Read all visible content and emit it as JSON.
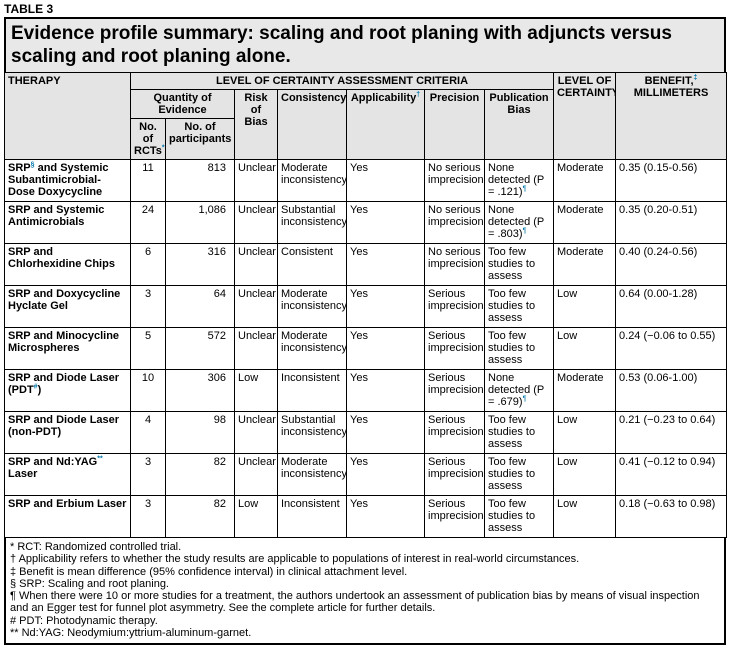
{
  "header": {
    "label": "TABLE 3",
    "title": "Evidence profile summary: scaling and root planing with adjuncts versus scaling and root planing alone."
  },
  "table": {
    "headers": {
      "therapy": "THERAPY",
      "criteria": "LEVEL OF CERTAINTY ASSESSMENT CRITERIA",
      "certainty": "LEVEL OF CERTAINTY",
      "benefit": [
        {
          "t": "BENEFIT,"
        },
        {
          "sup": "‡"
        },
        {
          "t": " MILLIMETERS"
        }
      ],
      "quantity": "Quantity of Evidence",
      "risk": "Risk of Bias",
      "consistency": "Consistency",
      "applicability": [
        {
          "t": "Applicability"
        },
        {
          "sup": "†"
        }
      ],
      "precision": "Precision",
      "publication": "Publication Bias",
      "rcts": [
        {
          "t": "No. of RCTs"
        },
        {
          "sup": "*"
        }
      ],
      "participants": "No. of participants"
    },
    "rows": [
      [
        [
          {
            "t": "SRP"
          },
          {
            "sup": "§"
          },
          {
            "t": " and Systemic Subantimicrobial-Dose Doxycycline"
          }
        ],
        "11",
        "813",
        "Unclear",
        "Moderate inconsistency",
        "Yes",
        "No serious imprecision",
        [
          {
            "t": "None detected (P = .121)"
          },
          {
            "sup": "¶"
          }
        ],
        "Moderate",
        "0.35 (0.15-0.56)"
      ],
      [
        "SRP and Systemic Antimicrobials",
        "24",
        "1,086",
        "Unclear",
        "Substantial inconsistency",
        "Yes",
        "No serious imprecision",
        [
          {
            "t": "None detected (P = .803)"
          },
          {
            "sup": "¶"
          }
        ],
        "Moderate",
        "0.35 (0.20-0.51)"
      ],
      [
        "SRP and Chlorhexidine Chips",
        "6",
        "316",
        "Unclear",
        "Consistent",
        "Yes",
        "No serious imprecision",
        "Too few studies to assess",
        "Moderate",
        "0.40 (0.24-0.56)"
      ],
      [
        "SRP and Doxycycline Hyclate Gel",
        "3",
        "64",
        "Unclear",
        "Moderate inconsistency",
        "Yes",
        "Serious imprecision",
        "Too few studies to assess",
        "Low",
        "0.64 (0.00-1.28)"
      ],
      [
        "SRP and Minocycline Microspheres",
        "5",
        "572",
        "Unclear",
        "Moderate inconsistency",
        "Yes",
        "Serious imprecision",
        "Too few studies to assess",
        "Low",
        "0.24 (−0.06 to 0.55)"
      ],
      [
        [
          {
            "t": "SRP and Diode Laser (PDT"
          },
          {
            "sup": "#"
          },
          {
            "t": ")"
          }
        ],
        "10",
        "306",
        "Low",
        "Inconsistent",
        "Yes",
        "Serious imprecision",
        [
          {
            "t": "None detected (P = .679)"
          },
          {
            "sup": "¶"
          }
        ],
        "Moderate",
        "0.53 (0.06-1.00)"
      ],
      [
        "SRP and Diode Laser (non-PDT)",
        "4",
        "98",
        "Unclear",
        "Substantial inconsistency",
        "Yes",
        "Serious imprecision",
        "Too few studies to assess",
        "Low",
        "0.21 (−0.23 to 0.64)"
      ],
      [
        [
          {
            "t": "SRP and Nd:YAG"
          },
          {
            "sup": "**"
          },
          {
            "t": " Laser"
          }
        ],
        "3",
        "82",
        "Unclear",
        "Moderate inconsistency",
        "Yes",
        "Serious imprecision",
        "Too few studies to assess",
        "Low",
        "0.41 (−0.12 to 0.94)"
      ],
      [
        "SRP and Erbium Laser",
        "3",
        "82",
        "Low",
        "Inconsistent",
        "Yes",
        "Serious imprecision",
        "Too few studies to assess",
        "Low",
        "0.18 (−0.63 to 0.98)"
      ]
    ]
  },
  "footnotes": [
    "* RCT: Randomized controlled trial.",
    "† Applicability refers to whether the study results are applicable to populations of interest in real-world circumstances.",
    "‡ Benefit is mean difference (95% confidence interval) in clinical attachment level.",
    "§ SRP: Scaling and root planing.",
    "¶ When there were 10 or more studies for a treatment, the authors undertook an assessment of publication bias by means of visual inspection and an Egger test for funnel plot asymmetry. See the complete article for further details.",
    "# PDT: Photodynamic therapy.",
    "** Nd:YAG: Neodymium:yttrium-aluminum-garnet."
  ]
}
